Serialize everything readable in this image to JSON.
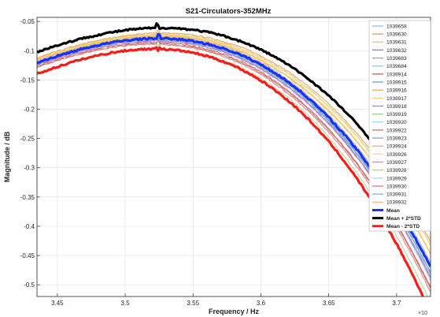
{
  "chart_data": {
    "type": "line",
    "title": "S21-Circulators-352MHz",
    "xlabel": "Frequency / Hz",
    "ylabel": "Magnitude / dB",
    "x_multiplier": "×10",
    "xlim": [
      3.435,
      3.725
    ],
    "ylim": [
      -0.52,
      -0.043
    ],
    "xticks": [
      3.45,
      3.5,
      3.55,
      3.6,
      3.65,
      3.7
    ],
    "xtick_labels": [
      "3.45",
      "3.5",
      "3.55",
      "3.6",
      "3.65",
      "3.7"
    ],
    "yticks": [
      -0.05,
      -0.1,
      -0.15,
      -0.2,
      -0.25,
      -0.3,
      -0.35,
      -0.4,
      -0.45,
      -0.5
    ],
    "ytick_labels": [
      "-0.05",
      "-0.1",
      "-0.15",
      "-0.2",
      "-0.25",
      "-0.3",
      "-0.35",
      "-0.4",
      "-0.45",
      "-0.5"
    ],
    "grid": true,
    "legend_position": "top-right",
    "series": [
      {
        "name": "1039658",
        "color": "#8fb8de",
        "peak": -0.078,
        "peak_x": 3.524,
        "width": 0.95
      },
      {
        "name": "1039630",
        "color": "#e0904a",
        "peak": -0.07,
        "peak_x": 3.527,
        "width": 1.0
      },
      {
        "name": "1039631",
        "color": "#f0c040",
        "peak": -0.072,
        "peak_x": 3.526,
        "width": 1.0
      },
      {
        "name": "1039632",
        "color": "#9b6bb5",
        "peak": -0.083,
        "peak_x": 3.522,
        "width": 0.97
      },
      {
        "name": "1039683",
        "color": "#86c06a",
        "peak": -0.08,
        "peak_x": 3.523,
        "width": 0.97
      },
      {
        "name": "1039684",
        "color": "#7ec8e3",
        "peak": -0.076,
        "peak_x": 3.524,
        "width": 0.98
      },
      {
        "name": "1039914",
        "color": "#c05050",
        "peak": -0.086,
        "peak_x": 3.521,
        "width": 0.96
      },
      {
        "name": "1039915",
        "color": "#5b9bd5",
        "peak": -0.079,
        "peak_x": 3.523,
        "width": 0.97
      },
      {
        "name": "1039916",
        "color": "#e8a060",
        "peak": -0.074,
        "peak_x": 3.525,
        "width": 0.99
      },
      {
        "name": "1039917",
        "color": "#f5d060",
        "peak": -0.073,
        "peak_x": 3.525,
        "width": 0.99
      },
      {
        "name": "1039918",
        "color": "#a77cc7",
        "peak": -0.082,
        "peak_x": 3.522,
        "width": 0.97
      },
      {
        "name": "1039919",
        "color": "#9ccc7c",
        "peak": -0.081,
        "peak_x": 3.523,
        "width": 0.97
      },
      {
        "name": "1039920",
        "color": "#8fd4ea",
        "peak": -0.077,
        "peak_x": 3.524,
        "width": 0.98
      },
      {
        "name": "1039922",
        "color": "#d06060",
        "peak": -0.088,
        "peak_x": 3.521,
        "width": 0.96
      },
      {
        "name": "1039923",
        "color": "#6aa6d9",
        "peak": -0.08,
        "peak_x": 3.523,
        "width": 0.97
      },
      {
        "name": "1039924",
        "color": "#eea870",
        "peak": -0.075,
        "peak_x": 3.525,
        "width": 0.99
      },
      {
        "name": "1039926",
        "color": "#f7d870",
        "peak": -0.074,
        "peak_x": 3.525,
        "width": 0.99
      },
      {
        "name": "1039927",
        "color": "#b38ccf",
        "peak": -0.084,
        "peak_x": 3.522,
        "width": 0.97
      },
      {
        "name": "1039928",
        "color": "#a8d488",
        "peak": -0.096,
        "peak_x": 3.522,
        "width": 0.94
      },
      {
        "name": "1039929",
        "color": "#9adcef",
        "peak": -0.078,
        "peak_x": 3.524,
        "width": 0.98
      },
      {
        "name": "1039930",
        "color": "#d87070",
        "peak": -0.089,
        "peak_x": 3.52,
        "width": 0.96
      },
      {
        "name": "1039931",
        "color": "#78b0dc",
        "peak": -0.081,
        "peak_x": 3.523,
        "width": 0.97
      },
      {
        "name": "1039932",
        "color": "#f0b080",
        "peak": -0.076,
        "peak_x": 3.524,
        "width": 0.98
      },
      {
        "name": "Mean",
        "color": "#1432ff",
        "peak": -0.079,
        "peak_x": 3.524,
        "width": 0.975,
        "bold": true
      },
      {
        "name": "Mean + 2*STD",
        "color": "#000000",
        "peak": -0.061,
        "peak_x": 3.527,
        "width": 1.02,
        "bold": true
      },
      {
        "name": "Mean - 2*STD",
        "color": "#ff1a1a",
        "peak": -0.097,
        "peak_x": 3.521,
        "width": 0.93,
        "bold": true
      }
    ]
  }
}
